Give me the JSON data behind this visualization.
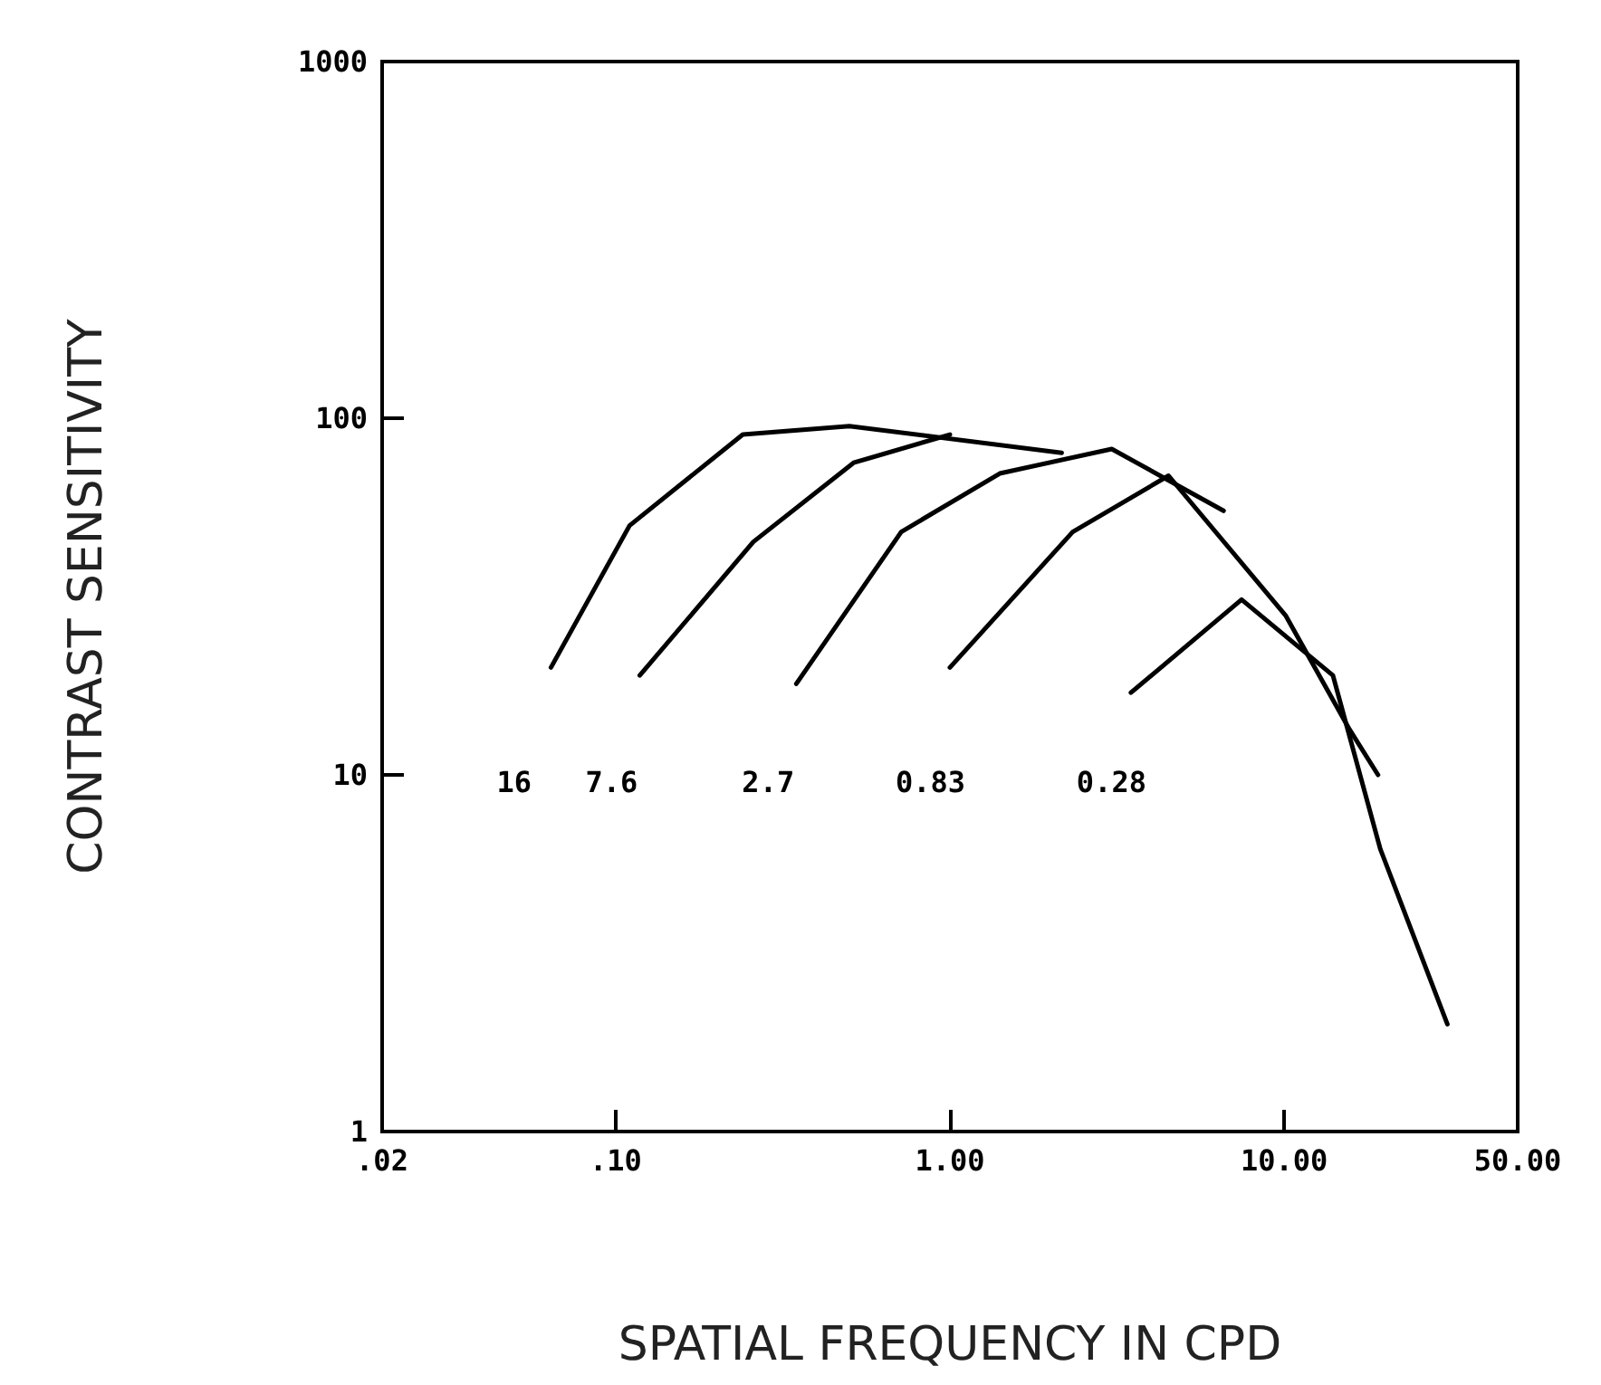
{
  "chart_data": {
    "type": "line",
    "xlabel": "SPATIAL FREQUENCY IN CPD",
    "ylabel": "CONTRAST SENSITIVITY",
    "log": "xy",
    "grid": false,
    "marker": "none",
    "line_style": "solid",
    "xlim": [
      0.02,
      50
    ],
    "ylim": [
      1,
      1000
    ],
    "xticks": [
      {
        "value": 0.02,
        "label": ".02"
      },
      {
        "value": 0.1,
        "label": ".10"
      },
      {
        "value": 1,
        "label": "1.00"
      },
      {
        "value": 10,
        "label": "10.00"
      },
      {
        "value": 50,
        "label": "50.00"
      }
    ],
    "yticks": [
      1,
      10,
      100,
      1000
    ],
    "series": [
      {
        "color": "#000000",
        "x": [
          0.064,
          0.11,
          0.24,
          0.5,
          2.16
        ],
        "values": [
          20,
          50,
          90,
          95,
          80
        ]
      },
      {
        "color": "#000000",
        "x": [
          0.118,
          0.258,
          0.515,
          1.0
        ],
        "values": [
          19,
          45,
          75,
          90
        ]
      },
      {
        "color": "#000000",
        "x": [
          0.347,
          0.715,
          1.41,
          3.05,
          6.59
        ],
        "values": [
          18,
          48,
          70,
          82,
          55
        ]
      },
      {
        "color": "#000000",
        "x": [
          1.0,
          2.33,
          4.51,
          10.1,
          15.7,
          19.1
        ],
        "values": [
          20,
          48,
          69,
          28,
          13.4,
          10
        ]
      },
      {
        "color": "#000000",
        "x": [
          3.48,
          7.46,
          14.0,
          19.4,
          30.8
        ],
        "values": [
          17,
          31,
          19,
          6.2,
          2
        ]
      }
    ],
    "annotations": [
      "16",
      "7.6",
      "2.7",
      "0.83",
      "0.28"
    ]
  }
}
